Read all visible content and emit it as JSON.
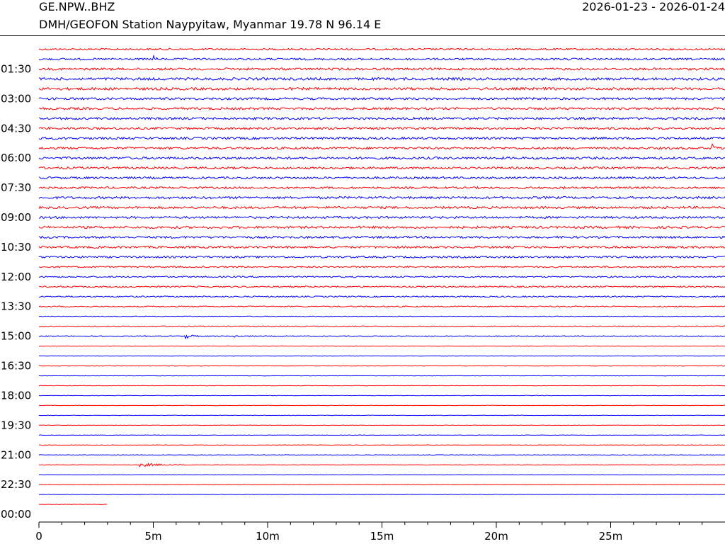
{
  "header": {
    "station_code": "GE.NPW..BHZ",
    "station_description": "DMH/GEOFON Station Naypyitaw, Myanmar  19.78 N 96.14 E",
    "date_range": "2026-01-23 - 2026-01-24"
  },
  "chart_data": {
    "type": "line",
    "title": "",
    "xlabel": "",
    "ylabel": "",
    "xlim_minutes": [
      0,
      30
    ],
    "x_ticks": [
      {
        "minute": 0,
        "label": "0"
      },
      {
        "minute": 5,
        "label": "5m"
      },
      {
        "minute": 10,
        "label": "10m"
      },
      {
        "minute": 15,
        "label": "15m"
      },
      {
        "minute": 20,
        "label": "20m"
      },
      {
        "minute": 25,
        "label": "25m"
      }
    ],
    "x_minor_tick_minutes": [
      1,
      2,
      3,
      4,
      6,
      7,
      8,
      9,
      11,
      12,
      13,
      14,
      16,
      17,
      18,
      19,
      21,
      22,
      23,
      24,
      26,
      27,
      28,
      29
    ],
    "trace_interval_minutes": 30,
    "trace_count": 47,
    "row_labels": [
      {
        "row": 2,
        "label": "01:30"
      },
      {
        "row": 5,
        "label": "03:00"
      },
      {
        "row": 8,
        "label": "04:30"
      },
      {
        "row": 11,
        "label": "06:00"
      },
      {
        "row": 14,
        "label": "07:30"
      },
      {
        "row": 17,
        "label": "09:00"
      },
      {
        "row": 20,
        "label": "10:30"
      },
      {
        "row": 23,
        "label": "12:00"
      },
      {
        "row": 26,
        "label": "13:30"
      },
      {
        "row": 29,
        "label": "15:00"
      },
      {
        "row": 32,
        "label": "16:30"
      },
      {
        "row": 35,
        "label": "18:00"
      },
      {
        "row": 38,
        "label": "19:30"
      },
      {
        "row": 41,
        "label": "21:00"
      },
      {
        "row": 44,
        "label": "22:30"
      },
      {
        "row": 47,
        "label": "00:00"
      }
    ],
    "colors": {
      "odd_rows": "#ff0000",
      "even_rows": "#0000ff"
    },
    "noise_levels": [
      1.2,
      1.4,
      1.6,
      1.8,
      1.8,
      1.6,
      1.6,
      1.6,
      1.5,
      1.5,
      1.5,
      1.6,
      1.5,
      1.5,
      1.4,
      1.6,
      1.6,
      1.5,
      1.6,
      1.5,
      1.5,
      1.3,
      1.0,
      1.0,
      1.0,
      0.9,
      0.8,
      0.5,
      0.6,
      0.7,
      0.3,
      0.3,
      0.3,
      0.3,
      0.3,
      0.3,
      0.3,
      0.3,
      0.3,
      0.3,
      0.3,
      0.4,
      0.3,
      0.3,
      0.3,
      0.3,
      0.3
    ],
    "events": [
      {
        "row": 1,
        "start_minute": 5.0,
        "duration_minutes": 0.4,
        "amplitude": 7
      },
      {
        "row": 4,
        "start_minute": 17.8,
        "duration_minutes": 0.6,
        "amplitude": 5
      },
      {
        "row": 10,
        "start_minute": 29.4,
        "duration_minutes": 0.6,
        "amplitude": 9
      },
      {
        "row": 11,
        "start_minute": 4.5,
        "duration_minutes": 0.3,
        "amplitude": 4
      },
      {
        "row": 12,
        "start_minute": 25.5,
        "duration_minutes": 0.6,
        "amplitude": 3
      },
      {
        "row": 14,
        "start_minute": 22.9,
        "duration_minutes": 0.4,
        "amplitude": 3
      },
      {
        "row": 29,
        "start_minute": 6.3,
        "duration_minutes": 1.2,
        "amplitude": 5
      },
      {
        "row": 29,
        "start_minute": 8.5,
        "duration_minutes": 1.0,
        "amplitude": 3
      },
      {
        "row": 42,
        "start_minute": 4.4,
        "duration_minutes": 3.0,
        "amplitude": 3
      }
    ],
    "last_trace_end_minute": 3.0
  }
}
